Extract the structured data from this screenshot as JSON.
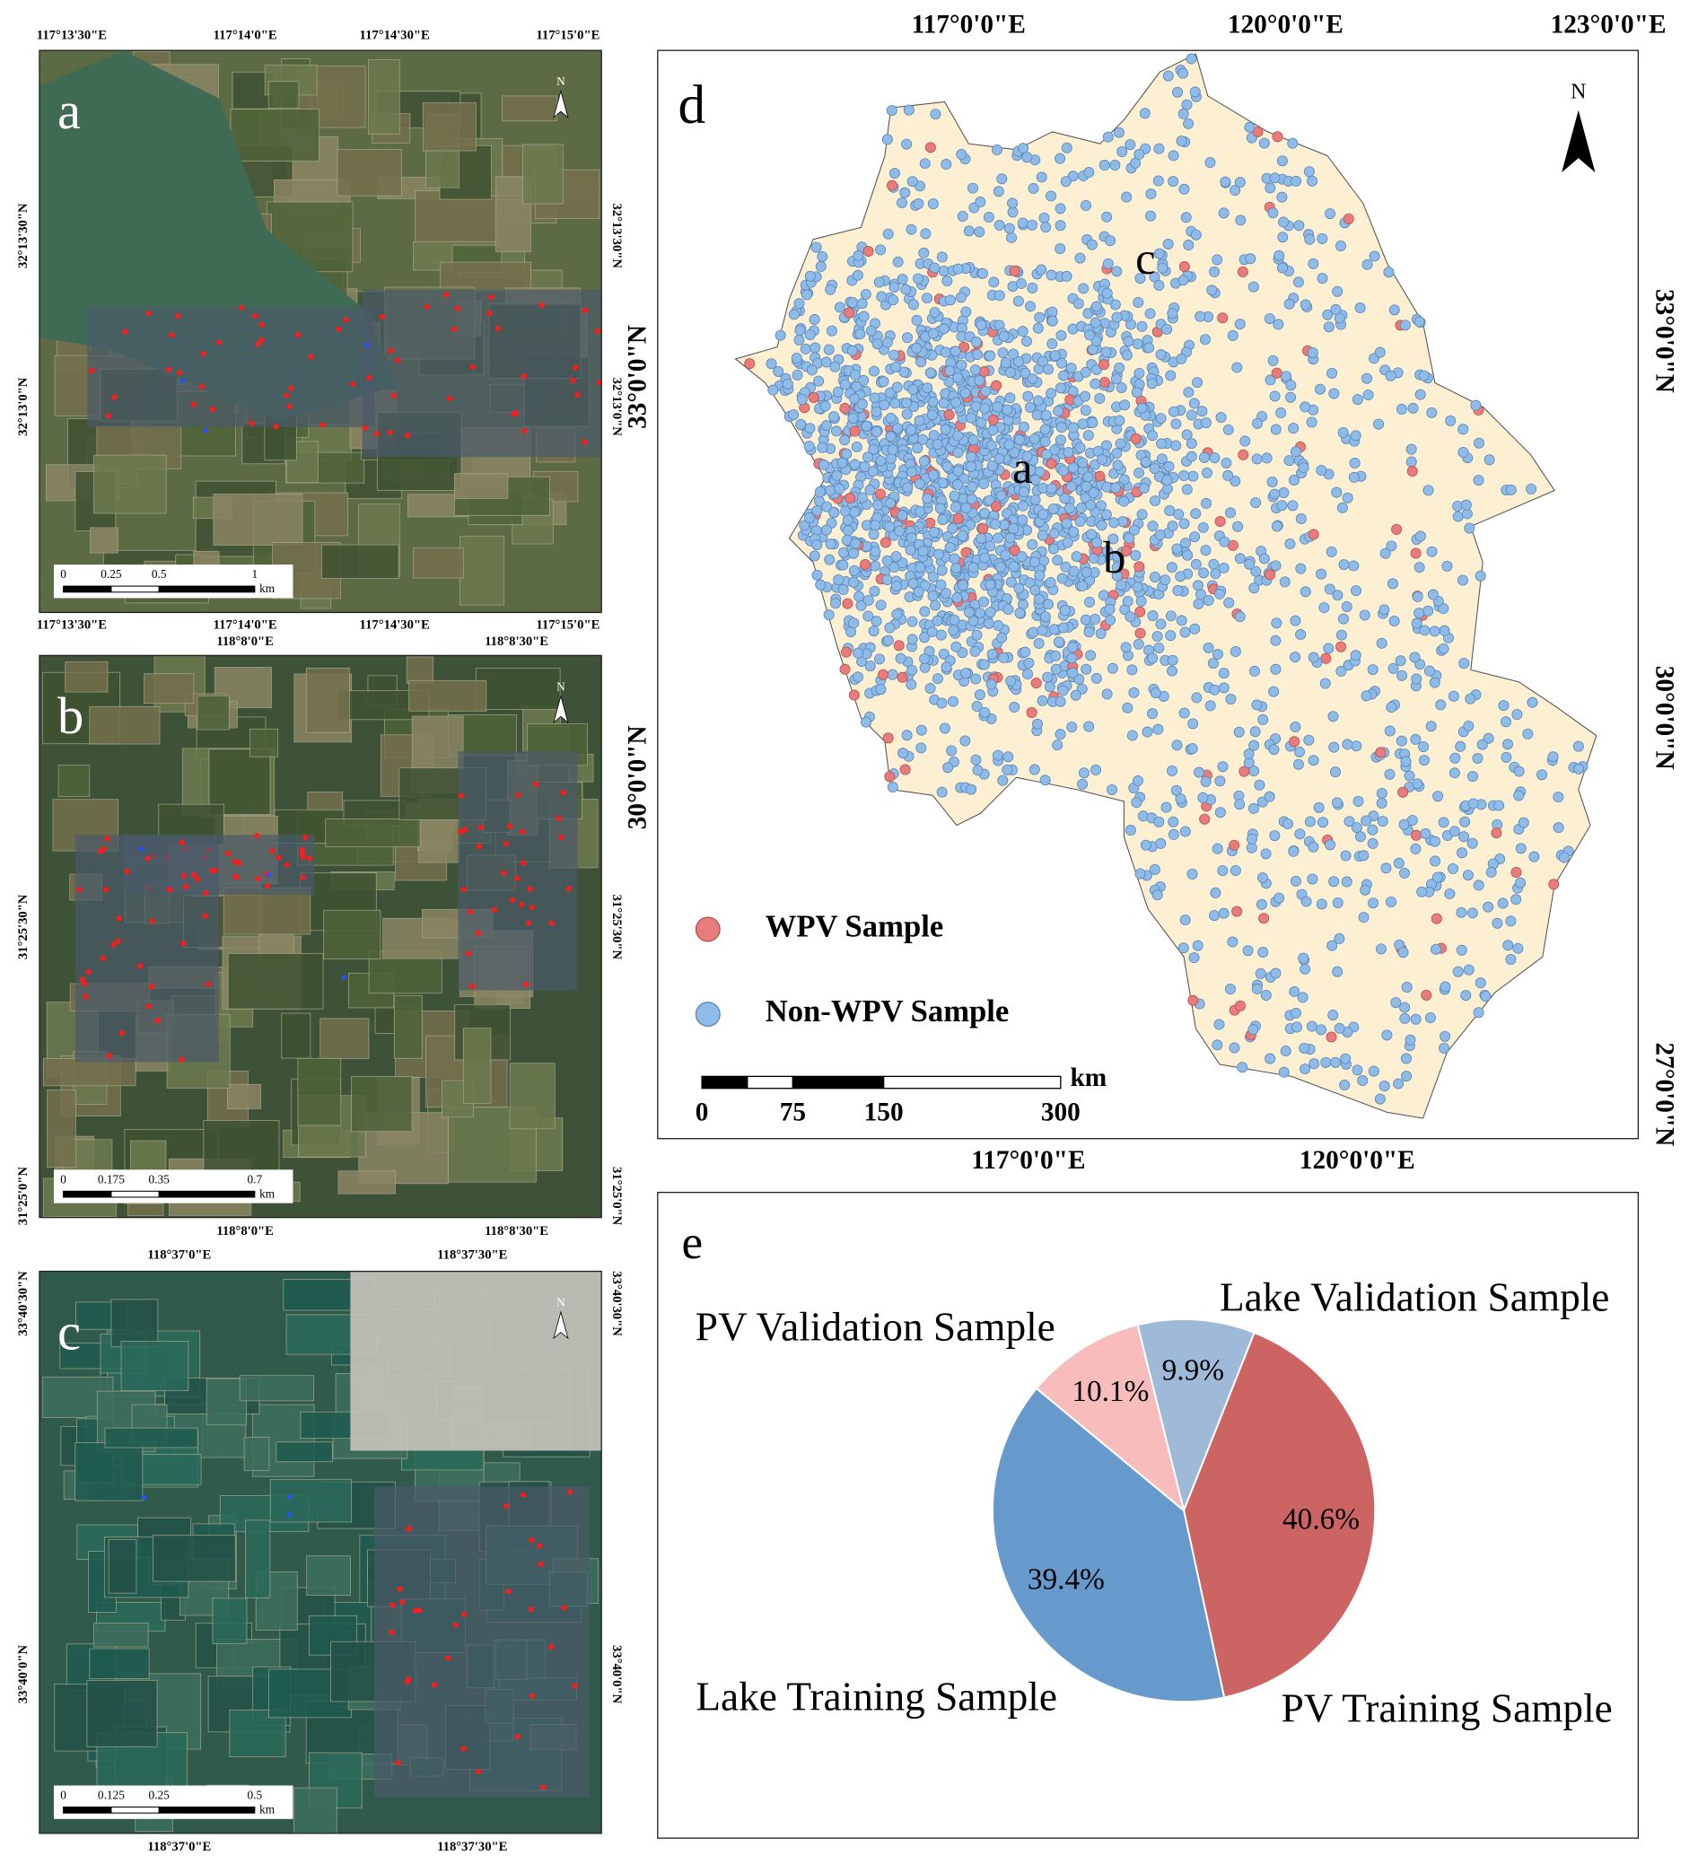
{
  "panels": [
    {
      "label": "a",
      "top_ticks": [
        "117°13'30\"E",
        "117°14'0\"E",
        "117°14'30\"E",
        "117°15'0\"E"
      ],
      "bottom_ticks": [
        "117°13'30\"E",
        "117°14'0\"E",
        "117°14'30\"E",
        "117°15'0\"E"
      ],
      "left_ticks": [
        "32°13'30\"N",
        "32°13'0\"N"
      ],
      "right_ticks": [
        "32°13'30\"N",
        "32°13'0\"N"
      ],
      "scale": [
        "0",
        "0.25",
        "0.5",
        "1"
      ],
      "scale_unit": "km",
      "north": "N"
    },
    {
      "label": "b",
      "top_ticks": [
        "118°8'0\"E",
        "118°8'30\"E"
      ],
      "bottom_ticks": [
        "118°8'0\"E",
        "118°8'30\"E"
      ],
      "left_ticks": [
        "31°25'30\"N",
        "31°25'0\"N"
      ],
      "right_ticks": [
        "31°25'30\"N",
        "31°25'0\"N"
      ],
      "scale": [
        "0",
        "0.175",
        "0.35",
        "0.7"
      ],
      "scale_unit": "km",
      "north": "N"
    },
    {
      "label": "c",
      "top_ticks": [
        "118°37'0\"E",
        "118°37'30\"E"
      ],
      "bottom_ticks": [
        "118°37'0\"E",
        "118°37'30\"E"
      ],
      "left_ticks": [
        "33°40'30\"N",
        "33°40'0\"N"
      ],
      "right_ticks": [
        "33°40'30\"N",
        "33°40'0\"N"
      ],
      "scale": [
        "0",
        "0.125",
        "0.25",
        "0.5"
      ],
      "scale_unit": "km",
      "north": "N"
    }
  ],
  "overview_map": {
    "label": "d",
    "top_ticks": [
      "117°0'0\"E",
      "120°0'0\"E",
      "123°0'0\"E"
    ],
    "bottom_ticks": [
      "117°0'0\"E",
      "120°0'0\"E"
    ],
    "left_ticks": [
      "33°0'0\"N",
      "30°0'0\"N"
    ],
    "right_ticks": [
      "33°0'0\"N",
      "30°0'0\"N",
      "27°0'0\"N"
    ],
    "site_labels": [
      "a",
      "b",
      "c"
    ],
    "legend": [
      "WPV Sample",
      "Non-WPV Sample"
    ],
    "scale": [
      "0",
      "75",
      "150",
      "300"
    ],
    "scale_unit": "km",
    "north": "N"
  },
  "chart_data": {
    "type": "pie",
    "panel_label": "e",
    "categories": [
      "Lake Validation Sample",
      "PV Training Sample",
      "Lake Training Sample",
      "PV Validation Sample"
    ],
    "values": [
      9.9,
      40.6,
      39.4,
      10.1
    ],
    "value_labels": [
      "9.9%",
      "40.6%",
      "39.4%",
      "10.1%"
    ],
    "colors": [
      "#9fbad8",
      "#cd6464",
      "#6699cc",
      "#f8bcbc"
    ]
  }
}
